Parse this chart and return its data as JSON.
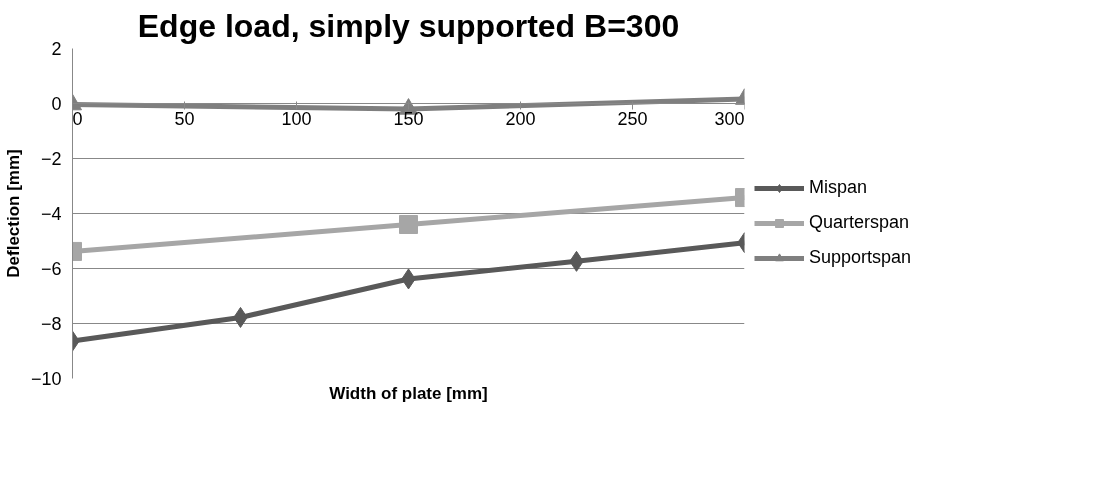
{
  "chart_data": {
    "type": "line",
    "title": "Edge load, simply supported B=300",
    "xlabel": "Width of plate [mm]",
    "ylabel": "Deflection [mm]",
    "xlim": [
      0,
      300
    ],
    "xticks": [
      0,
      50,
      100,
      150,
      200,
      250,
      300
    ],
    "ylim": [
      -10,
      2
    ],
    "yticks": [
      -10,
      -8,
      -6,
      -4,
      -2,
      0,
      2
    ],
    "grid": "y",
    "legend": "right",
    "series": [
      {
        "name": "Mispan",
        "color": "#595959",
        "marker": "diamond",
        "x": [
          0,
          75,
          150,
          225,
          300
        ],
        "values": [
          -8.64,
          -7.78,
          -6.38,
          -5.74,
          -5.06
        ]
      },
      {
        "name": "Quarterspan",
        "color": "#a6a6a6",
        "marker": "square",
        "x": [
          0,
          150,
          300
        ],
        "values": [
          -5.38,
          -4.4,
          -3.42
        ]
      },
      {
        "name": "Supportspan",
        "color": "#7f7f7f",
        "marker": "triangle",
        "x": [
          0,
          150,
          300
        ],
        "values": [
          -0.04,
          -0.2,
          0.16
        ]
      }
    ]
  }
}
